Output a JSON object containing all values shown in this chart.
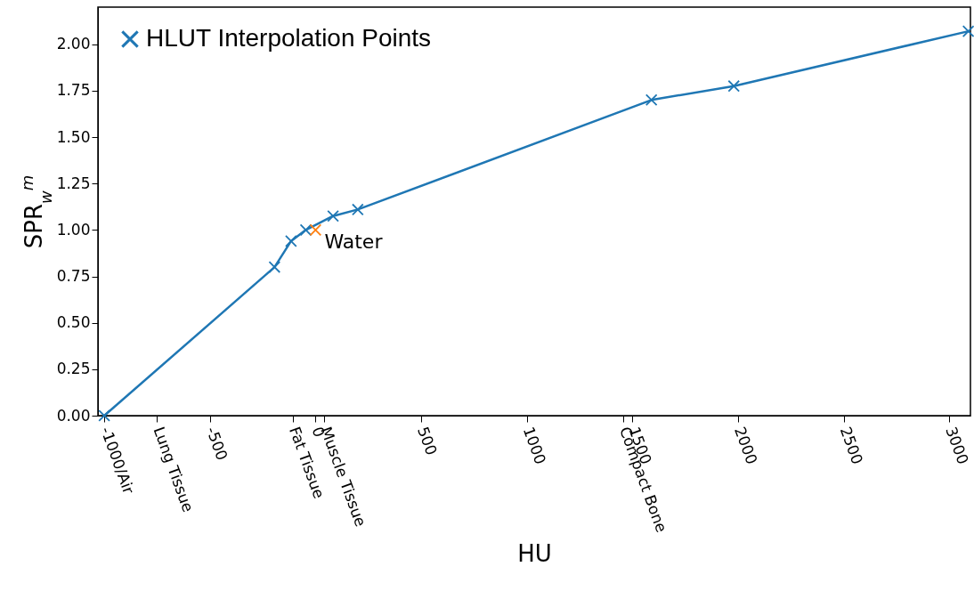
{
  "chart_data": {
    "type": "line",
    "xlabel": "HU",
    "ylabel": "SPR$_{w}$$^{m}$",
    "series": [
      {
        "name": "HLUT Interpolation Points",
        "type": "line",
        "color": "#1f77b4",
        "x": [
          -1000,
          -194,
          -116,
          -46,
          83,
          200,
          1590,
          1980,
          3090
        ],
        "values": [
          0,
          0.8,
          0.94,
          1.0,
          1.075,
          1.11,
          1.7,
          1.775,
          2.07
        ]
      },
      {
        "type": "scatter",
        "color": "#ff7f0e",
        "x": [
          0
        ],
        "values": [
          1.0
        ]
      }
    ],
    "annotations": [
      {
        "text": "Water",
        "x": 0,
        "y": 1.0
      }
    ],
    "xlim": [
      -1030,
      3100
    ],
    "ylim": [
      0,
      2.2
    ],
    "xticks": [
      {
        "value": -1000,
        "label": "-1000/Air"
      },
      {
        "value": -750,
        "label": "Lung Tissue"
      },
      -500,
      {
        "value": -107,
        "label": "Fat Tissue"
      },
      0,
      {
        "value": 41,
        "label": "Muscle Tissue"
      },
      500,
      1000,
      {
        "value": 1456,
        "label": "Compact Bone"
      },
      1500,
      2000,
      2500,
      3000
    ],
    "yticks": [
      {
        "value": 0,
        "label": "0.00"
      },
      {
        "value": 0.25,
        "label": "0.25"
      },
      {
        "value": 0.5,
        "label": "0.50"
      },
      {
        "value": 0.75,
        "label": "0.75"
      },
      {
        "value": 1,
        "label": "1.00"
      },
      {
        "value": 1.25,
        "label": "1.25"
      },
      {
        "value": 1.5,
        "label": "1.50"
      },
      {
        "value": 1.75,
        "label": "1.75"
      },
      {
        "value": 2,
        "label": "2.00"
      }
    ],
    "marker": "cross",
    "legend": "top left",
    "grid": false
  }
}
